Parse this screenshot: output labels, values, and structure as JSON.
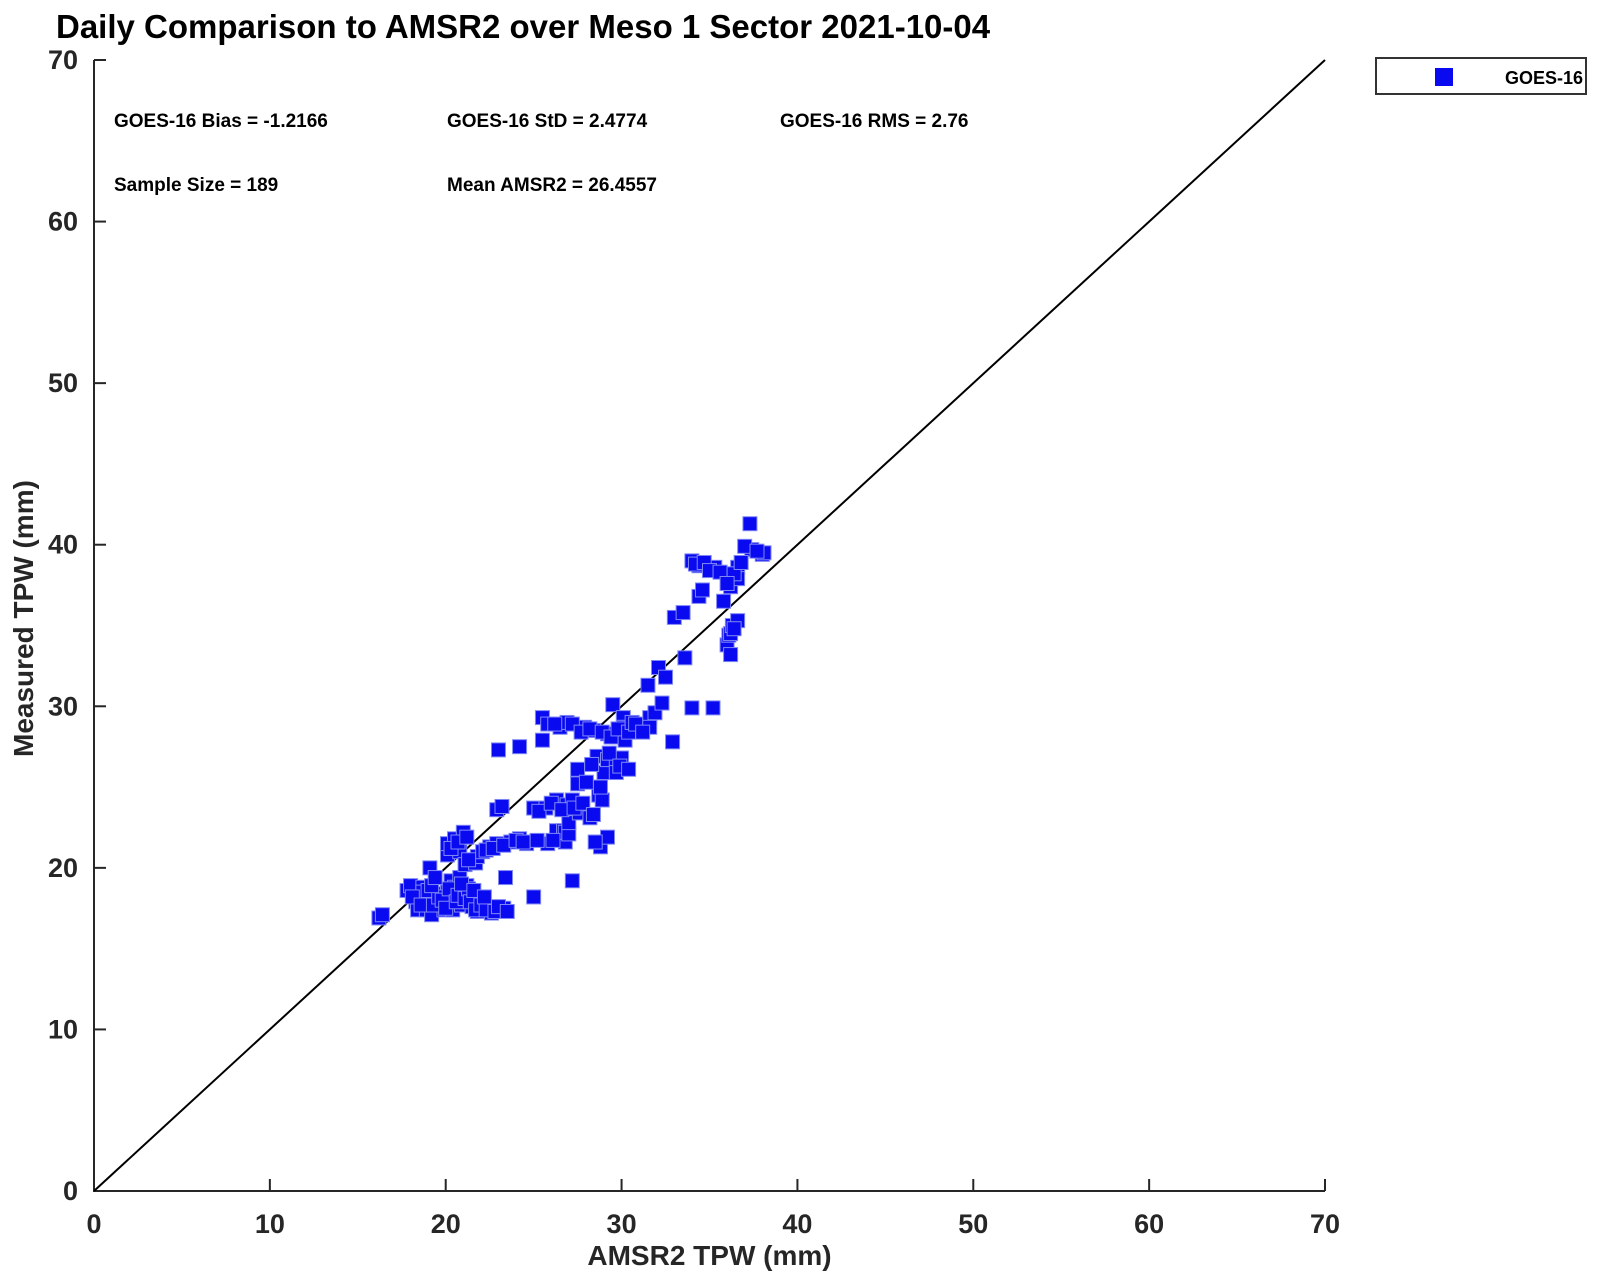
{
  "title": "Daily Comparison to AMSR2 over Meso 1 Sector 2021-10-04",
  "stats": {
    "bias": "GOES-16 Bias = -1.2166",
    "std": "GOES-16 StD = 2.4774",
    "rms": "GOES-16 RMS = 2.76",
    "sample_size": "Sample Size = 189",
    "mean_amsr2": "Mean AMSR2 = 26.4557"
  },
  "legend": {
    "label": "GOES-16",
    "marker": "square",
    "marker_color": "#0a0af0"
  },
  "colors": {
    "marker_fill": "#0a0af0",
    "marker_edge": "#8089f5",
    "axis": "#262626",
    "identity_line": "#000000",
    "text": "#000000"
  },
  "chart_data": {
    "type": "scatter",
    "title": "Daily Comparison to AMSR2 over Meso 1 Sector 2021-10-04",
    "xlabel": "AMSR2 TPW (mm)",
    "ylabel": "Measured TPW (mm)",
    "xlim": [
      0,
      70
    ],
    "ylim": [
      0,
      70
    ],
    "xticks": [
      0,
      10,
      20,
      30,
      40,
      50,
      60,
      70
    ],
    "yticks": [
      0,
      10,
      20,
      30,
      40,
      50,
      60,
      70
    ],
    "grid": false,
    "legend_position": "top-right",
    "reference_line": {
      "type": "identity",
      "from": [
        0,
        0
      ],
      "to": [
        70,
        70
      ],
      "color": "#000000"
    },
    "annotations": [
      "GOES-16 Bias = -1.2166",
      "GOES-16 StD = 2.4774",
      "GOES-16 RMS = 2.76",
      "Sample Size = 189",
      "Mean AMSR2 = 26.4557"
    ],
    "series": [
      {
        "name": "GOES-16",
        "marker": "square",
        "marker_size_px": 14,
        "color": "#0a0af0",
        "points": [
          [
            16.2,
            16.9
          ],
          [
            17.8,
            18.6
          ],
          [
            18.0,
            18.9
          ],
          [
            18.3,
            17.9
          ],
          [
            18.4,
            17.4
          ],
          [
            18.7,
            18.8
          ],
          [
            18.7,
            18.5
          ],
          [
            18.9,
            17.4
          ],
          [
            19.1,
            20.0
          ],
          [
            19.2,
            17.1
          ],
          [
            19.4,
            18.1
          ],
          [
            19.5,
            18.4
          ],
          [
            19.9,
            17.4
          ],
          [
            20.1,
            18.5
          ],
          [
            20.3,
            18.1
          ],
          [
            20.3,
            19.2
          ],
          [
            20.4,
            17.4
          ],
          [
            20.5,
            18.8
          ],
          [
            20.8,
            19.4
          ],
          [
            21.0,
            18.5
          ],
          [
            20.9,
            17.7
          ],
          [
            21.2,
            18.9
          ],
          [
            21.5,
            17.6
          ],
          [
            21.8,
            17.3
          ],
          [
            22.6,
            17.2
          ],
          [
            23.2,
            17.4
          ],
          [
            23.3,
            17.5
          ],
          [
            23.4,
            19.4
          ],
          [
            25.0,
            18.2
          ],
          [
            27.2,
            19.2
          ],
          [
            16.4,
            17.1
          ],
          [
            18.1,
            18.2
          ],
          [
            18.6,
            17.7
          ],
          [
            19.0,
            18.6
          ],
          [
            19.3,
            17.7
          ],
          [
            19.6,
            18.2
          ],
          [
            19.8,
            18.0
          ],
          [
            20.0,
            17.5
          ],
          [
            20.2,
            18.7
          ],
          [
            20.6,
            17.9
          ],
          [
            20.7,
            18.3
          ],
          [
            21.1,
            18.1
          ],
          [
            21.3,
            18.7
          ],
          [
            21.4,
            17.9
          ],
          [
            21.7,
            17.4
          ],
          [
            22.0,
            17.7
          ],
          [
            22.3,
            17.4
          ],
          [
            22.8,
            17.3
          ],
          [
            23.0,
            17.6
          ],
          [
            23.5,
            17.3
          ],
          [
            19.2,
            18.9
          ],
          [
            20.9,
            19.0
          ],
          [
            21.6,
            18.6
          ],
          [
            22.2,
            18.2
          ],
          [
            19.4,
            19.4
          ],
          [
            20.1,
            20.8
          ],
          [
            20.1,
            21.5
          ],
          [
            20.5,
            21.8
          ],
          [
            20.8,
            21.0
          ],
          [
            21.0,
            22.2
          ],
          [
            21.1,
            20.2
          ],
          [
            21.7,
            20.3
          ],
          [
            21.8,
            20.7
          ],
          [
            22.1,
            21.0
          ],
          [
            22.5,
            21.3
          ],
          [
            22.9,
            21.5
          ],
          [
            23.7,
            21.6
          ],
          [
            24.2,
            21.8
          ],
          [
            24.6,
            21.5
          ],
          [
            25.8,
            21.5
          ],
          [
            26.3,
            22.3
          ],
          [
            26.7,
            22.3
          ],
          [
            26.8,
            21.6
          ],
          [
            26.8,
            22.2
          ],
          [
            28.8,
            21.3
          ],
          [
            29.2,
            21.9
          ],
          [
            20.3,
            21.2
          ],
          [
            20.7,
            21.6
          ],
          [
            21.2,
            21.9
          ],
          [
            21.3,
            20.5
          ],
          [
            22.3,
            21.1
          ],
          [
            22.7,
            21.2
          ],
          [
            23.3,
            21.4
          ],
          [
            24.0,
            21.7
          ],
          [
            24.4,
            21.6
          ],
          [
            25.2,
            21.7
          ],
          [
            26.1,
            21.7
          ],
          [
            27.0,
            22.1
          ],
          [
            28.5,
            21.6
          ],
          [
            22.9,
            23.6
          ],
          [
            25.0,
            23.7
          ],
          [
            25.7,
            23.7
          ],
          [
            26.3,
            24.2
          ],
          [
            26.9,
            23.9
          ],
          [
            27.0,
            22.8
          ],
          [
            27.2,
            24.2
          ],
          [
            27.5,
            25.2
          ],
          [
            27.6,
            23.4
          ],
          [
            28.2,
            23.1
          ],
          [
            28.7,
            24.5
          ],
          [
            23.2,
            23.8
          ],
          [
            25.3,
            23.5
          ],
          [
            26.0,
            24.0
          ],
          [
            26.6,
            23.6
          ],
          [
            27.3,
            23.7
          ],
          [
            27.8,
            24.0
          ],
          [
            28.4,
            23.3
          ],
          [
            28.9,
            24.2
          ],
          [
            23.0,
            27.3
          ],
          [
            24.2,
            27.5
          ],
          [
            25.5,
            27.9
          ],
          [
            25.5,
            29.3
          ],
          [
            26.5,
            28.7
          ],
          [
            26.9,
            29.0
          ],
          [
            27.5,
            26.1
          ],
          [
            27.9,
            28.7
          ],
          [
            28.0,
            25.3
          ],
          [
            28.4,
            28.5
          ],
          [
            28.6,
            26.9
          ],
          [
            28.8,
            25.0
          ],
          [
            29.0,
            25.9
          ],
          [
            29.2,
            26.7
          ],
          [
            29.2,
            28.3
          ],
          [
            29.5,
            30.1
          ],
          [
            29.7,
            26.7
          ],
          [
            29.7,
            25.9
          ],
          [
            29.9,
            28.3
          ],
          [
            30.0,
            26.8
          ],
          [
            30.1,
            29.3
          ],
          [
            30.1,
            28.7
          ],
          [
            30.2,
            27.9
          ],
          [
            31.5,
            31.3
          ],
          [
            31.6,
            29.3
          ],
          [
            31.6,
            28.7
          ],
          [
            32.1,
            32.4
          ],
          [
            32.9,
            27.8
          ],
          [
            33.6,
            33.0
          ],
          [
            34.0,
            29.9
          ],
          [
            35.2,
            29.9
          ],
          [
            25.8,
            28.9
          ],
          [
            26.2,
            28.9
          ],
          [
            27.2,
            28.9
          ],
          [
            27.7,
            28.4
          ],
          [
            28.2,
            28.6
          ],
          [
            28.9,
            28.4
          ],
          [
            29.4,
            28.1
          ],
          [
            29.8,
            28.6
          ],
          [
            30.4,
            28.4
          ],
          [
            30.6,
            29.0
          ],
          [
            30.8,
            28.9
          ],
          [
            31.2,
            28.4
          ],
          [
            29.3,
            27.1
          ],
          [
            29.9,
            26.3
          ],
          [
            30.4,
            26.1
          ],
          [
            28.3,
            26.4
          ],
          [
            31.9,
            29.6
          ],
          [
            32.3,
            30.2
          ],
          [
            32.5,
            31.8
          ],
          [
            33.0,
            35.5
          ],
          [
            34.0,
            39.0
          ],
          [
            34.4,
            38.7
          ],
          [
            34.4,
            36.8
          ],
          [
            34.6,
            37.2
          ],
          [
            35.3,
            38.6
          ],
          [
            36.0,
            33.8
          ],
          [
            36.1,
            34.4
          ],
          [
            36.2,
            33.2
          ],
          [
            36.2,
            34.5
          ],
          [
            36.2,
            37.4
          ],
          [
            36.3,
            35.0
          ],
          [
            36.6,
            35.3
          ],
          [
            36.6,
            38.6
          ],
          [
            36.6,
            37.9
          ],
          [
            37.3,
            41.3
          ],
          [
            37.4,
            39.7
          ],
          [
            38.0,
            39.4
          ],
          [
            38.1,
            39.5
          ],
          [
            34.2,
            38.8
          ],
          [
            34.7,
            38.9
          ],
          [
            35.0,
            38.4
          ],
          [
            35.6,
            38.3
          ],
          [
            36.4,
            38.2
          ],
          [
            36.8,
            38.9
          ],
          [
            37.0,
            39.9
          ],
          [
            37.7,
            39.6
          ],
          [
            36.0,
            37.6
          ],
          [
            35.8,
            36.5
          ],
          [
            36.4,
            34.8
          ],
          [
            33.5,
            35.8
          ]
        ]
      }
    ]
  }
}
